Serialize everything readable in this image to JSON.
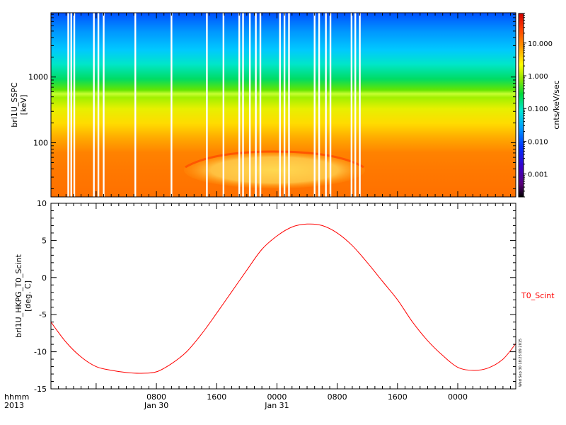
{
  "chart_data": [
    {
      "type": "heatmap",
      "ylabel_line1": "brl1U_SSPC",
      "ylabel_line2": "[keV]",
      "y_scale": "log",
      "ylim": [
        15,
        9500
      ],
      "y_ticks": [
        {
          "value": 100,
          "label": "100"
        },
        {
          "value": 1000,
          "label": "1000"
        }
      ],
      "colorbar": {
        "label": "cnts/keV/sec",
        "scale": "log",
        "range": [
          0.0002,
          80
        ],
        "ticks": [
          {
            "value": 0.001,
            "label": "0.001"
          },
          {
            "value": 0.01,
            "label": "0.010"
          },
          {
            "value": 0.1,
            "label": "0.100"
          },
          {
            "value": 1,
            "label": "1.000"
          },
          {
            "value": 10,
            "label": "10.000"
          }
        ]
      },
      "data_gap_hours": [
        -3.7,
        -3.3,
        -2.9,
        -0.3,
        0.3,
        1.0,
        5.2,
        10.0,
        14.7,
        16.9,
        19.0,
        19.5,
        20.4,
        21.2,
        21.8,
        24.4,
        25.0,
        25.6,
        29.0,
        29.6,
        30.5,
        31.1,
        33.9,
        34.4,
        35.0
      ]
    },
    {
      "type": "line",
      "ylabel_line1": "brl1U_HKPG_T0_Scint",
      "ylabel_line2": "[deg. C]",
      "ylim": [
        -15,
        10
      ],
      "y_ticks": [
        {
          "value": -15,
          "label": "-15"
        },
        {
          "value": -10,
          "label": "-10"
        },
        {
          "value": -5,
          "label": "-5"
        },
        {
          "value": 0,
          "label": "0"
        },
        {
          "value": 5,
          "label": "5"
        },
        {
          "value": 10,
          "label": "10"
        }
      ],
      "series": [
        {
          "name": "T0_Scint",
          "color": "#ff0000",
          "x_hours": [
            -6,
            -4,
            -2,
            0,
            2,
            4,
            6,
            8,
            10,
            12,
            14,
            16,
            18,
            20,
            22,
            24,
            26,
            28,
            30,
            32,
            34,
            36,
            38,
            40,
            42,
            44,
            46,
            48,
            50,
            52,
            54,
            55.7
          ],
          "values": [
            -6.0,
            -8.7,
            -10.7,
            -12.0,
            -12.5,
            -12.8,
            -12.9,
            -12.7,
            -11.6,
            -10.0,
            -7.6,
            -4.8,
            -1.9,
            1.0,
            3.8,
            5.6,
            6.8,
            7.2,
            7.0,
            6.0,
            4.3,
            2.0,
            -0.5,
            -3.0,
            -6.0,
            -8.5,
            -10.5,
            -12.1,
            -12.5,
            -12.2,
            -11.0,
            -8.9
          ]
        }
      ]
    }
  ],
  "time_axis": {
    "xlim_hours": [
      -6,
      55.7
    ],
    "unit_label": "hhmm",
    "year_label": "2013",
    "ticks": [
      {
        "hours": 8,
        "label": "0800",
        "date": "Jan 30"
      },
      {
        "hours": 16,
        "label": "1600",
        "date": ""
      },
      {
        "hours": 24,
        "label": "0000",
        "date": "Jan 31"
      },
      {
        "hours": 32,
        "label": "0800",
        "date": ""
      },
      {
        "hours": 40,
        "label": "1600",
        "date": ""
      },
      {
        "hours": 48,
        "label": "0000",
        "date": ""
      },
      {
        "hours": 56,
        "label": "0800",
        "date": ""
      }
    ],
    "minor_step_hours": 1
  },
  "legend_label": "T0_Scint",
  "timestamp_text": "Wed Sep 30 18:25:09 2015"
}
